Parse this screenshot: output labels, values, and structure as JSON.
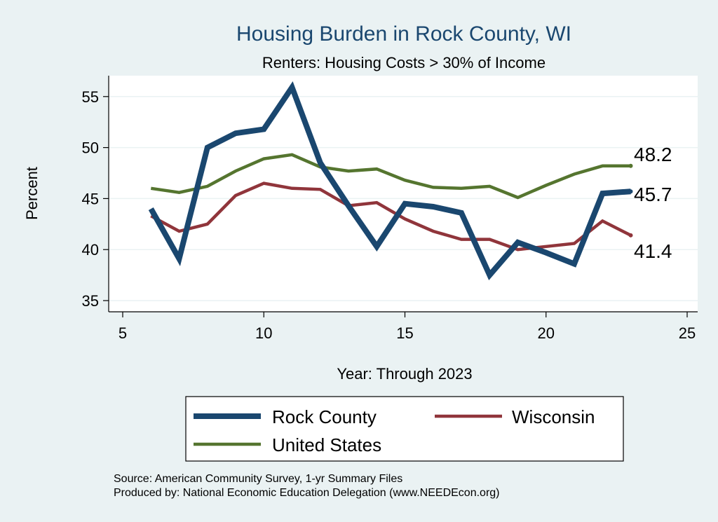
{
  "chart_data": {
    "type": "line",
    "title": "Housing Burden in Rock County, WI",
    "subtitle": "Renters: Housing Costs > 30% of Income",
    "xlabel": "Year: Through 2023",
    "ylabel": "Percent",
    "xlim": [
      5,
      25
    ],
    "ylim": [
      34.5,
      56.8
    ],
    "xticks": [
      5,
      10,
      15,
      20,
      25
    ],
    "yticks": [
      35,
      40,
      45,
      50,
      55
    ],
    "grid": true,
    "legend_position": "bottom",
    "x": [
      6,
      7,
      8,
      9,
      10,
      11,
      12,
      13,
      14,
      15,
      16,
      17,
      18,
      19,
      20,
      21,
      22,
      23
    ],
    "series": [
      {
        "name": "Rock County",
        "color": "#1a476f",
        "values": [
          44.0,
          39.1,
          50.0,
          51.4,
          51.8,
          55.9,
          48.5,
          44.3,
          40.3,
          44.5,
          44.2,
          43.6,
          37.5,
          40.7,
          39.7,
          38.6,
          45.5,
          45.7
        ],
        "end_label": "45.7"
      },
      {
        "name": "Wisconsin",
        "color": "#90353b",
        "values": [
          43.3,
          41.8,
          42.5,
          45.3,
          46.5,
          46.0,
          45.9,
          44.3,
          44.6,
          43.0,
          41.8,
          41.0,
          41.0,
          40.0,
          40.3,
          40.6,
          42.8,
          41.4
        ],
        "end_label": "41.4"
      },
      {
        "name": "United States",
        "color": "#55752f",
        "values": [
          46.0,
          45.6,
          46.2,
          47.7,
          48.9,
          49.3,
          48.1,
          47.7,
          47.9,
          46.8,
          46.1,
          46.0,
          46.2,
          45.1,
          46.3,
          47.4,
          48.2,
          48.2
        ],
        "end_label": "48.2"
      }
    ],
    "notes": [
      "Source: American Community Survey, 1-yr Summary Files",
      "Produced by: National Economic Education Delegation (www.NEEDEcon.org)"
    ]
  }
}
